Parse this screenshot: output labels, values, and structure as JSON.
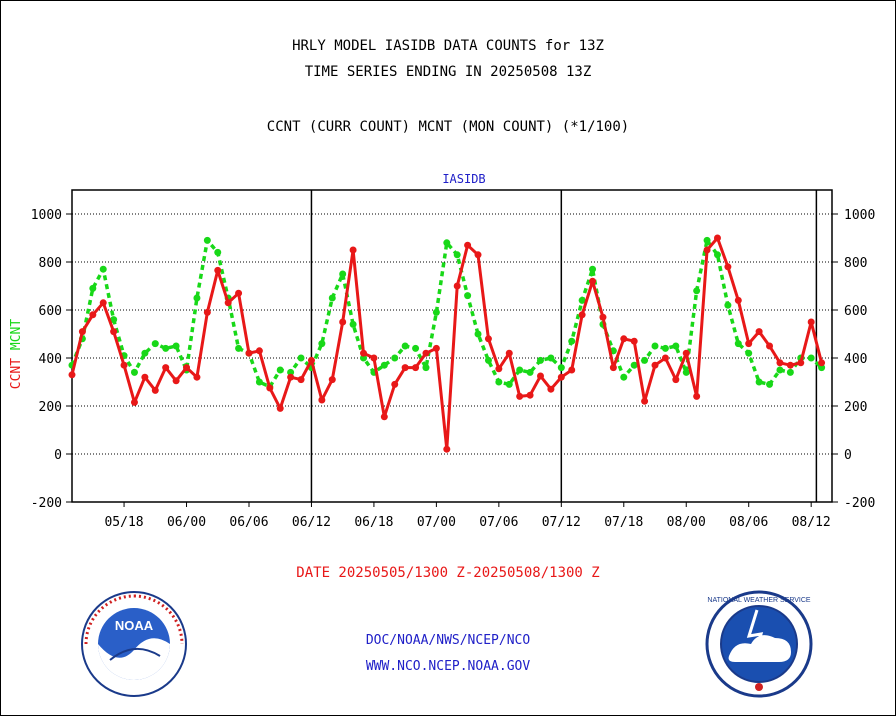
{
  "header": {
    "line1": "HRLY MODEL IASIDB DATA COUNTS for 13Z",
    "line2": "TIME SERIES ENDING IN 20250508 13Z",
    "line3": "CCNT (CURR COUNT) MCNT (MON COUNT) (*1/100)"
  },
  "footer": {
    "date_range": "DATE 20250505/1300 Z-20250508/1300 Z",
    "link1": "DOC/NOAA/NWS/NCEP/NCO",
    "link2": "WWW.NCO.NCEP.NOAA.GOV"
  },
  "logos": {
    "noaa": "NOAA",
    "nws": "NATIONAL WEATHER SERVICE"
  },
  "colors": {
    "ccnt": "#e81818",
    "mcnt": "#18d818",
    "axis": "#000000",
    "dataset_label": "#2020c8"
  },
  "chart_data": {
    "type": "line",
    "title": "IASIDB",
    "ylabel_left": [
      "CCNT",
      "MCNT"
    ],
    "xlabel": "",
    "ylim": [
      -200,
      1100
    ],
    "yticks": [
      -200,
      0,
      200,
      400,
      600,
      800,
      1000
    ],
    "grid": "horizontal dotted",
    "xtick_labels": [
      "05/18",
      "06/00",
      "06/06",
      "06/12",
      "06/18",
      "07/00",
      "07/06",
      "07/12",
      "07/18",
      "08/00",
      "08/06",
      "08/12"
    ],
    "xtick_hours": [
      5,
      11,
      17,
      23,
      29,
      35,
      41,
      47,
      53,
      59,
      65,
      71
    ],
    "day_boundaries_hours": [
      23,
      47,
      71.5
    ],
    "x_range_hours": [
      0,
      73
    ],
    "series": [
      {
        "name": "CCNT",
        "style": "solid",
        "values": [
          330,
          510,
          580,
          630,
          510,
          370,
          215,
          320,
          265,
          360,
          305,
          360,
          320,
          590,
          765,
          630,
          670,
          420,
          430,
          275,
          190,
          320,
          310,
          390,
          225,
          310,
          550,
          850,
          420,
          400,
          155,
          290,
          360,
          360,
          420,
          440,
          20,
          700,
          870,
          830,
          480,
          355,
          420,
          240,
          245,
          325,
          270,
          320,
          350,
          580,
          720,
          570,
          360,
          480,
          470,
          220,
          370,
          400,
          310,
          420,
          240,
          850,
          900,
          780,
          640,
          460,
          510,
          450,
          380,
          370,
          380,
          550,
          380
        ]
      },
      {
        "name": "MCNT",
        "style": "dashed",
        "values": [
          370,
          480,
          690,
          770,
          560,
          410,
          340,
          420,
          460,
          440,
          450,
          350,
          650,
          890,
          840,
          650,
          440,
          420,
          300,
          280,
          350,
          340,
          400,
          360,
          460,
          650,
          750,
          540,
          400,
          340,
          370,
          400,
          450,
          440,
          360,
          590,
          880,
          830,
          660,
          500,
          390,
          300,
          290,
          350,
          340,
          390,
          400,
          360,
          470,
          640,
          770,
          540,
          430,
          320,
          370,
          390,
          450,
          440,
          450,
          340,
          680,
          890,
          830,
          620,
          460,
          420,
          300,
          290,
          350,
          340,
          400,
          400,
          360
        ]
      }
    ]
  }
}
